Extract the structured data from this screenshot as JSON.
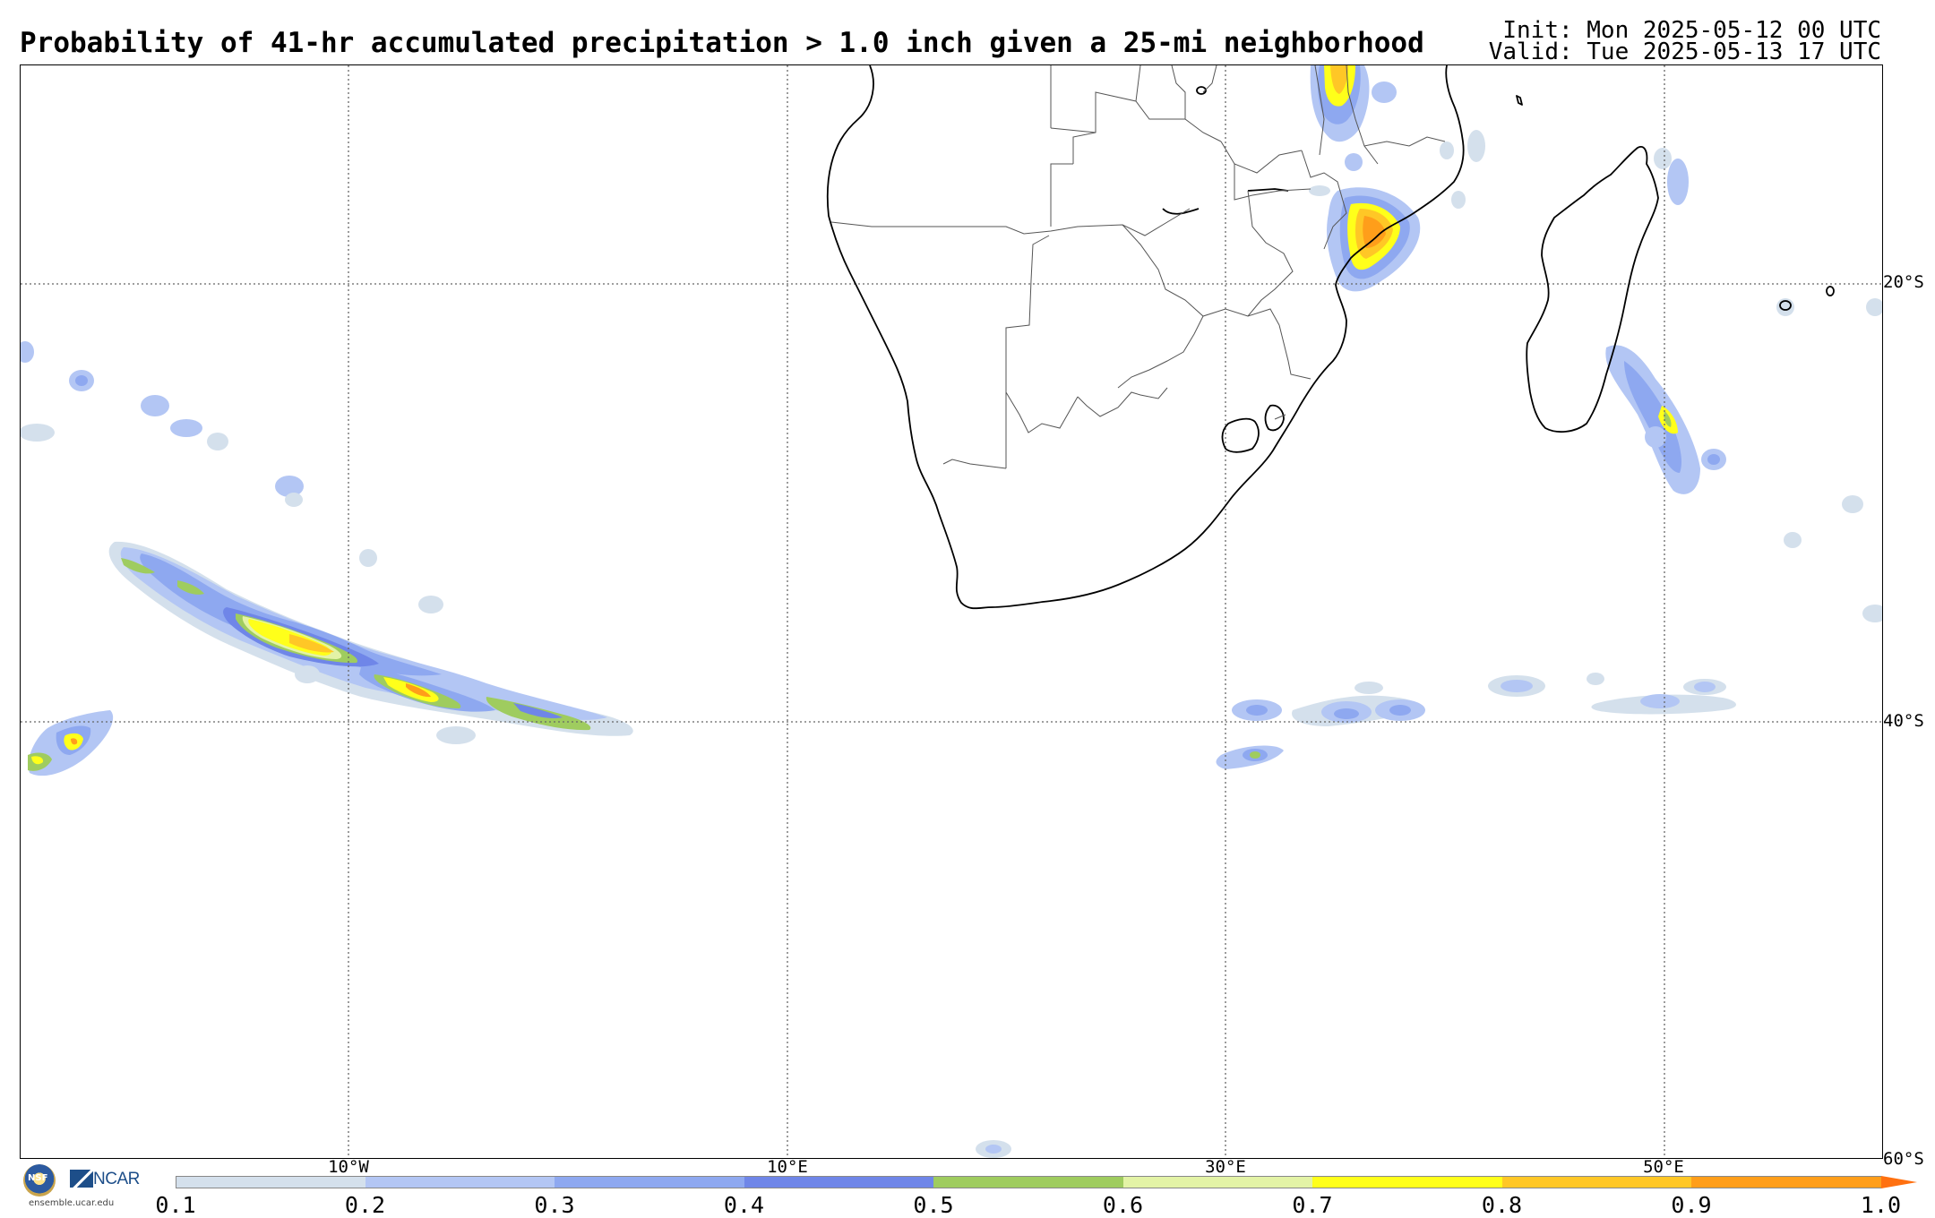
{
  "header": {
    "title": "Probability of 41-hr accumulated precipitation > 1.0 inch given a 25-mi neighborhood",
    "init": "Init: Mon 2025-05-12 00 UTC",
    "valid": "Valid: Tue 2025-05-13 17 UTC"
  },
  "map": {
    "lat_labels": [
      "20°S",
      "40°S",
      "60°S"
    ],
    "lon_labels": [
      "10°W",
      "10°E",
      "30°E",
      "50°E"
    ],
    "gridlines": "dotted",
    "colors": {
      "coastline": "#000000",
      "borders": "#555555",
      "grid": "#666666"
    }
  },
  "colorbar": {
    "ticks": [
      "0.1",
      "0.2",
      "0.3",
      "0.4",
      "0.5",
      "0.6",
      "0.7",
      "0.8",
      "0.9",
      "1.0"
    ],
    "colors": [
      "#d4e0ec",
      "#b3c6f4",
      "#8ea8f0",
      "#6f86e8",
      "#9fcc5f",
      "#e3f3a6",
      "#ffff1a",
      "#ffc726",
      "#ff9e1a"
    ],
    "extend_color": "#ff7010"
  },
  "logos": {
    "nsf": "NSF",
    "ncar": "NCAR",
    "site": "ensemble.ucar.edu"
  }
}
